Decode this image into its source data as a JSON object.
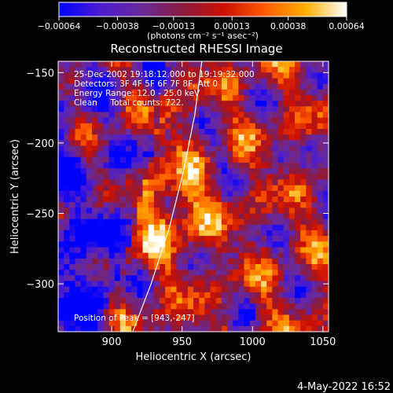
{
  "chart_data": {
    "type": "heatmap",
    "title": "Reconstructed RHESSI Image",
    "xlabel": "Heliocentric X (arcsec)",
    "ylabel": "Heliocentric Y (arcsec)",
    "xlim": [
      862,
      1054
    ],
    "ylim": [
      -334,
      -142
    ],
    "x_ticks": [
      900,
      950,
      1000,
      1050
    ],
    "y_ticks": [
      -150,
      -200,
      -250,
      -300
    ],
    "x_tick_labels": [
      "900",
      "950",
      "1000",
      "1050"
    ],
    "y_tick_labels": [
      "−150",
      "−200",
      "−250",
      "−300"
    ],
    "colorbar": {
      "range": [
        -0.00064,
        0.00064
      ],
      "ticks": [
        -0.00064,
        -0.00038,
        -0.00013,
        0.00013,
        0.00038,
        0.00064
      ],
      "tick_labels": [
        "−0.00064",
        "−0.00038",
        "−0.00013",
        "0.00013",
        "0.00038",
        "0.00064"
      ],
      "unit_label": "(photons cm⁻² s⁻¹ asec⁻²)",
      "colors": [
        "#0000ff",
        "#4a1bd0",
        "#6a2a9a",
        "#8a1a40",
        "#cc1000",
        "#ff5a00",
        "#ffb000",
        "#ffffff"
      ]
    },
    "annotations": {
      "time_range": "25-Dec-2002 19:18:12.000 to 19:19:32.000",
      "detectors": "Detectors: 3F 4F 5F 6F 7F 8F, Att 0",
      "energy": "Energy Range: 12.0 - 25.0 keV",
      "clean": "Clean     Total counts: 722.",
      "peak": "Position of Peak = [943,-247]"
    },
    "peak": [
      943,
      -247
    ],
    "limb_curve": [
      [
        915,
        -334
      ],
      [
        928,
        -300
      ],
      [
        941,
        -260
      ],
      [
        951,
        -220
      ],
      [
        959,
        -180
      ],
      [
        964,
        -142
      ]
    ],
    "grid": false
  },
  "footer": {
    "date": "4-May-2022 16:52"
  }
}
